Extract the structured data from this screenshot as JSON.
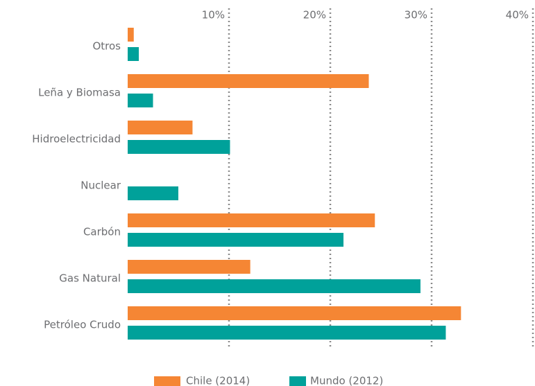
{
  "chart_data": {
    "type": "bar",
    "orientation": "horizontal",
    "categories": [
      "Otros",
      "Leña  y Biomasa",
      "Hidroelectricidad",
      "Nuclear",
      "Carbón",
      "Gas Natural",
      "Petróleo Crudo"
    ],
    "series": [
      {
        "name": "Chile (2014)",
        "color": "#f58634",
        "values": [
          0.6,
          23.8,
          6.4,
          0,
          24.4,
          12.1,
          32.9
        ]
      },
      {
        "name": "Mundo (2012)",
        "color": "#00a19a",
        "values": [
          1.1,
          2.5,
          10.1,
          5.0,
          21.3,
          28.9,
          31.4
        ]
      }
    ],
    "xlim": [
      0,
      40
    ],
    "xticks": [
      {
        "value": 10,
        "label": "10%"
      },
      {
        "value": 20,
        "label": "20%"
      },
      {
        "value": 30,
        "label": "30%"
      },
      {
        "value": 40,
        "label": "40%"
      }
    ],
    "grid": true,
    "legend": "bottom"
  }
}
